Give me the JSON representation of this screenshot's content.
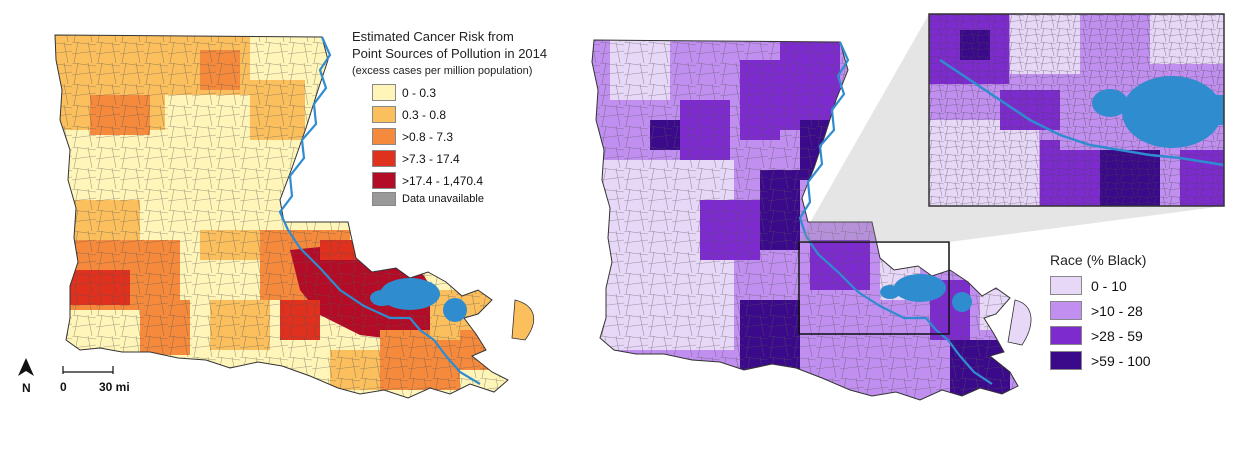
{
  "cancer_legend": {
    "title_lines": [
      "Estimated Cancer Risk from",
      "Point Sources of Pollution in 2014"
    ],
    "subtitle": "(excess cases per million population)",
    "items": [
      {
        "label": "0 - 0.3",
        "color": "#fff5b8"
      },
      {
        "label": "0.3 - 0.8",
        "color": "#fbbf5e"
      },
      {
        "label": ">0.8 - 7.3",
        "color": "#f58a3c"
      },
      {
        "label": ">7.3 - 17.4",
        "color": "#e0301e"
      },
      {
        "label": ">17.4 - 1,470.4",
        "color": "#b40b27"
      },
      {
        "label": "Data unavailable",
        "color": "#999999"
      }
    ]
  },
  "race_legend": {
    "title": "Race (% Black)",
    "items": [
      {
        "label": "0 - 10",
        "color": "#e8d8f8"
      },
      {
        "label": ">10 - 28",
        "color": "#c08ff0"
      },
      {
        "label": ">28 - 59",
        "color": "#7d2bcf"
      },
      {
        "label": ">59 - 100",
        "color": "#3b0a8a"
      }
    ]
  },
  "north_arrow": {
    "label": "N"
  },
  "scale_bar": {
    "start": "0",
    "end": "30 mi"
  },
  "water_color": "#2f8ccf"
}
